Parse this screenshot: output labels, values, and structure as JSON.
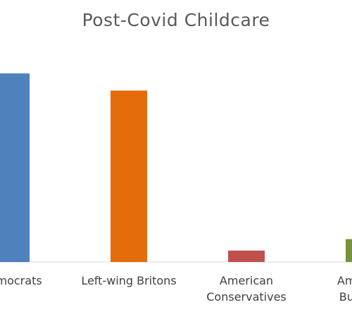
{
  "chart_data": {
    "type": "bar",
    "title": "Post-Covid Childcare",
    "categories": [
      [
        "Democrats"
      ],
      [
        "Left-wing Britons"
      ],
      [
        "American",
        "Conservatives"
      ],
      [
        "American",
        "Business"
      ]
    ],
    "values": [
      66,
      60,
      4,
      8
    ],
    "colors": [
      "#4F81BD",
      "#E46C0A",
      "#C0504D",
      "#77933C"
    ],
    "ylim": [
      0,
      70
    ],
    "grid": false,
    "legend": "none"
  }
}
